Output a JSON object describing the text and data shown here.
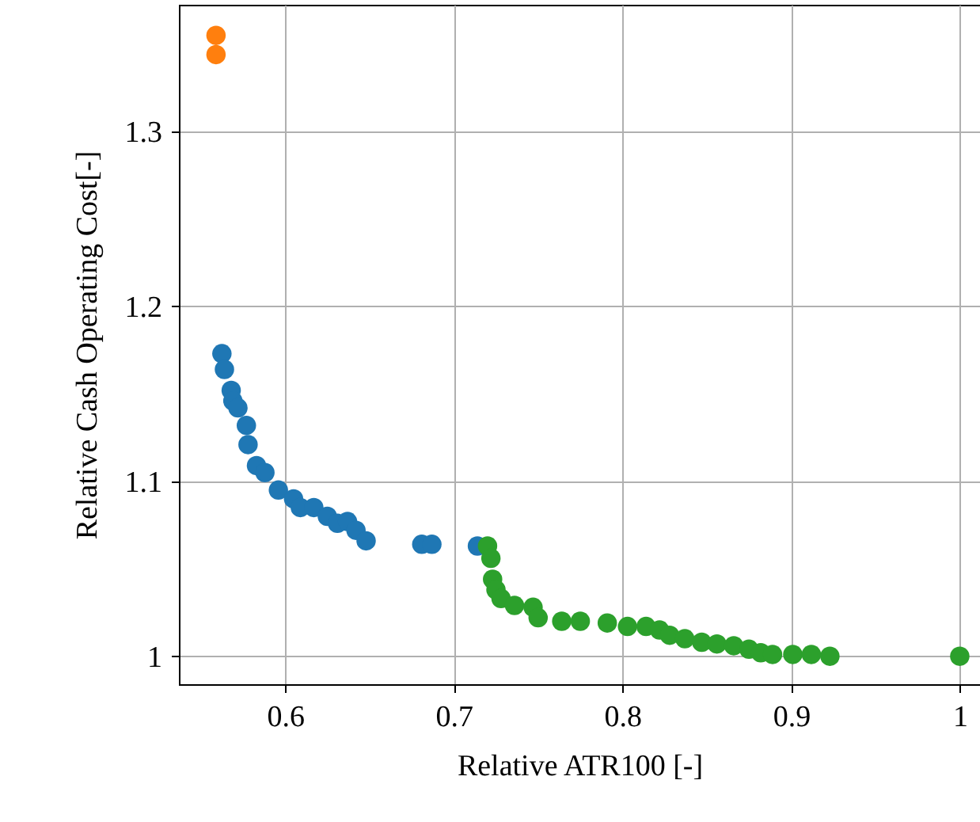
{
  "chart_data": {
    "type": "scatter",
    "xlabel": "Relative ATR100 [-]",
    "ylabel": "Relative Cash Operating Cost[-]",
    "xlim": [
      0.537,
      1.012
    ],
    "ylim": [
      0.984,
      1.3725
    ],
    "xticks": [
      0.6,
      0.7,
      0.8,
      0.9,
      1
    ],
    "yticks": [
      1,
      1.1,
      1.2,
      1.3
    ],
    "grid": true,
    "marker": "circle",
    "series": [
      {
        "color": "#1f77b4",
        "x": [
          0.5625,
          0.564,
          0.568,
          0.569,
          0.572,
          0.573,
          0.577,
          0.578,
          0.583,
          0.588,
          0.596,
          0.605,
          0.609,
          0.617,
          0.625,
          0.631,
          0.637,
          0.642,
          0.648,
          0.681,
          0.687,
          0.714
        ],
        "values": [
          1.173,
          1.164,
          1.152,
          1.146,
          1.142,
          null,
          1.132,
          1.121,
          1.109,
          1.105,
          1.095,
          1.09,
          1.085,
          1.085,
          1.08,
          1.076,
          1.077,
          1.072,
          1.066,
          1.064,
          1.064,
          1.063
        ]
      },
      {
        "color": "#ff7f0e",
        "x": [
          0.559,
          0.559
        ],
        "values": [
          1.355,
          1.344
        ]
      },
      {
        "color": "#2ca02c",
        "x": [
          0.72,
          0.722,
          0.723,
          0.725,
          0.728,
          0.736,
          0.747,
          0.75,
          0.764,
          0.775,
          0.791,
          0.803,
          0.814,
          0.822,
          0.828,
          0.837,
          0.847,
          0.856,
          0.866,
          0.872,
          0.875,
          0.882,
          0.889,
          0.901,
          0.912,
          0.923,
          1.0
        ],
        "values": [
          1.063,
          1.056,
          1.044,
          1.038,
          1.033,
          1.029,
          1.028,
          1.022,
          1.02,
          1.02,
          1.019,
          1.017,
          1.017,
          1.015,
          1.012,
          1.01,
          1.008,
          1.007,
          1.006,
          null,
          1.004,
          1.002,
          1.001,
          1.001,
          1.001,
          1.0,
          1.0
        ]
      }
    ]
  }
}
